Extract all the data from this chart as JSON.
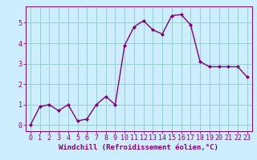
{
  "x": [
    0,
    1,
    2,
    3,
    4,
    5,
    6,
    7,
    8,
    9,
    10,
    11,
    12,
    13,
    14,
    15,
    16,
    17,
    18,
    19,
    20,
    21,
    22,
    23
  ],
  "y": [
    0.0,
    0.9,
    1.0,
    0.7,
    1.0,
    0.2,
    0.3,
    1.0,
    1.4,
    1.0,
    3.9,
    4.8,
    5.1,
    4.65,
    4.45,
    5.35,
    5.4,
    4.9,
    3.1,
    2.85,
    2.85,
    2.85,
    2.85,
    2.35
  ],
  "line_color": "#800080",
  "marker": "D",
  "marker_size": 2.0,
  "linewidth": 1.0,
  "bg_color": "#cceeff",
  "grid_color": "#99cccc",
  "xlabel": "Windchill (Refroidissement éolien,°C)",
  "xlim": [
    -0.5,
    23.5
  ],
  "ylim": [
    -0.3,
    5.8
  ],
  "xtick_labels": [
    "0",
    "1",
    "2",
    "3",
    "4",
    "5",
    "6",
    "7",
    "8",
    "9",
    "10",
    "11",
    "12",
    "13",
    "14",
    "15",
    "16",
    "17",
    "18",
    "19",
    "20",
    "21",
    "22",
    "23"
  ],
  "ytick_values": [
    0,
    1,
    2,
    3,
    4,
    5
  ],
  "xlabel_fontsize": 6.5,
  "tick_fontsize": 6.0,
  "label_color": "#800080"
}
